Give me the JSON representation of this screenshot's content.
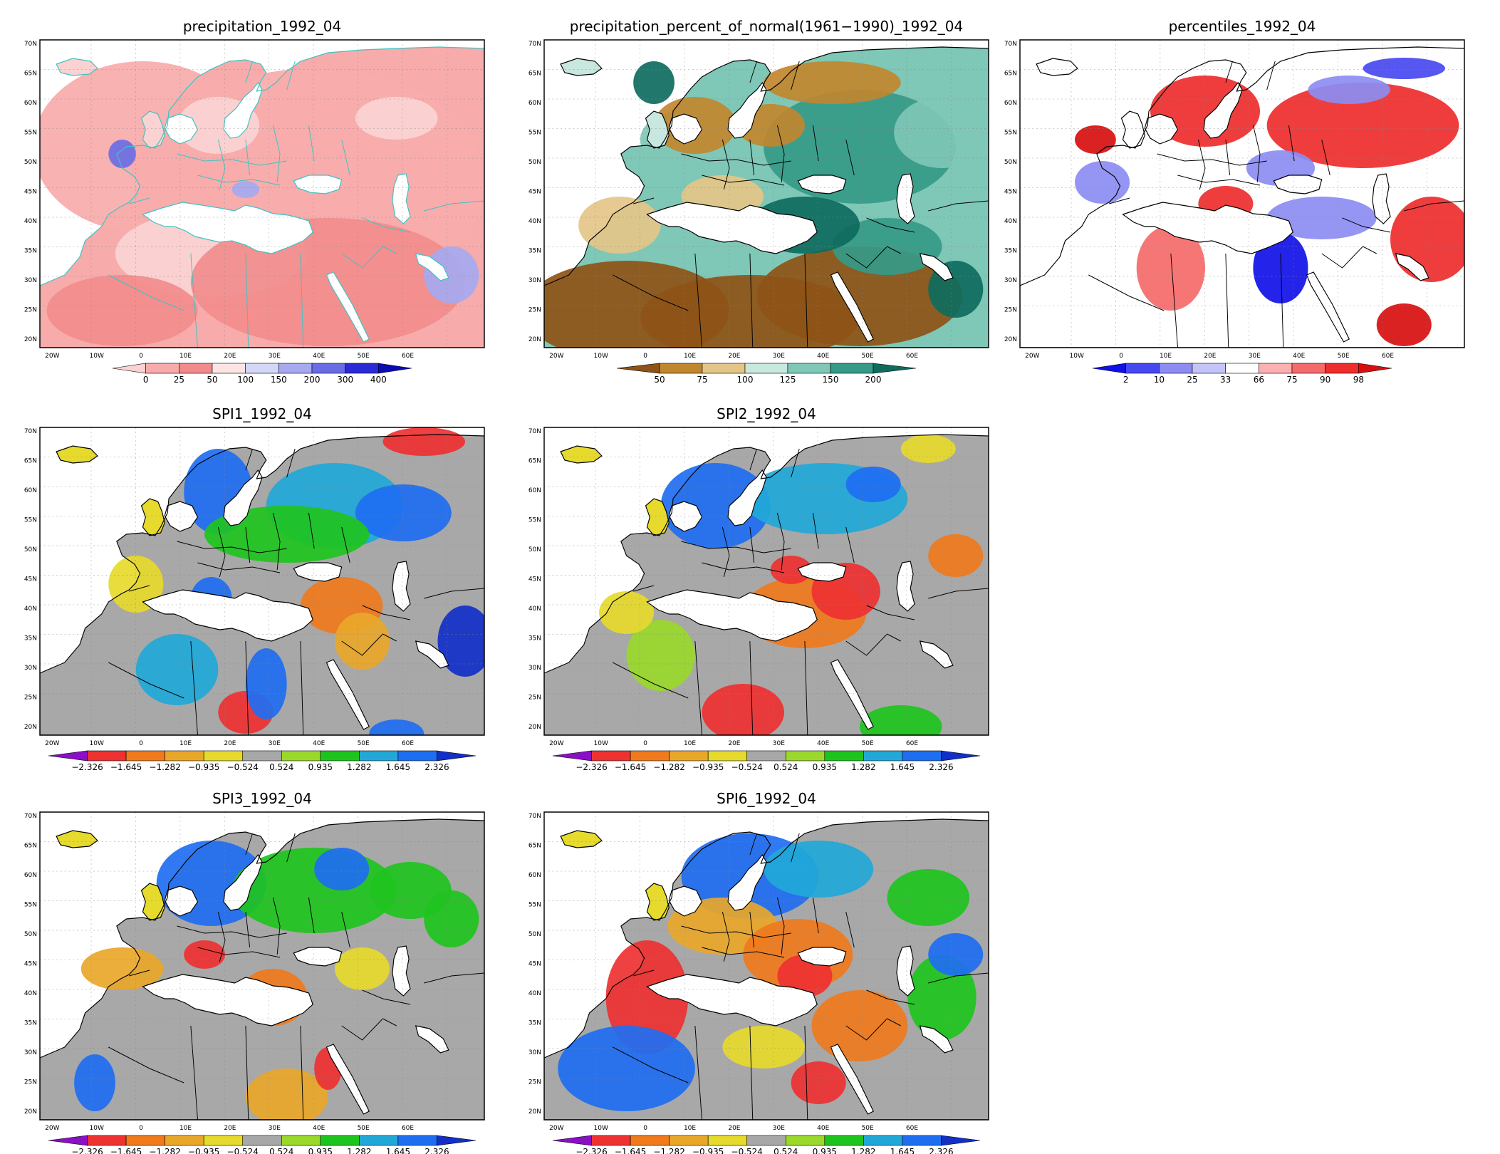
{
  "lat_labels": [
    "70N",
    "65N",
    "60N",
    "55N",
    "50N",
    "45N",
    "40N",
    "35N",
    "30N",
    "25N",
    "20N"
  ],
  "lon_labels": [
    "20W",
    "10W",
    "0",
    "10E",
    "20E",
    "30E",
    "40E",
    "50E",
    "60E"
  ],
  "colorbars": {
    "precip": {
      "labels": [
        "0",
        "25",
        "50",
        "100",
        "150",
        "200",
        "300",
        "400"
      ],
      "colors": [
        "#fbd2d2",
        "#f7abab",
        "#f28c8c",
        "#fce4e4",
        "#d4d7f7",
        "#a6a9f0",
        "#6a6ce6",
        "#2a2ad6",
        "#0b0bb4"
      ]
    },
    "percent": {
      "labels": [
        "50",
        "75",
        "100",
        "125",
        "150",
        "200"
      ],
      "colors": [
        "#8e5316",
        "#c1872f",
        "#e4c588",
        "#c7e7df",
        "#7fc7b6",
        "#359a88",
        "#0e6b5e"
      ]
    },
    "percentile": {
      "labels": [
        "2",
        "10",
        "25",
        "33",
        "66",
        "75",
        "90",
        "98"
      ],
      "colors": [
        "#1010e8",
        "#4848f0",
        "#8c8cf2",
        "#c4c4f8",
        "#ffffff",
        "#fbb1b1",
        "#f56a6a",
        "#ee2d2d",
        "#d80f0f"
      ]
    },
    "spi": {
      "labels": [
        "−2.326",
        "−1.645",
        "−1.282",
        "−0.935",
        "−0.524",
        "0.524",
        "0.935",
        "1.282",
        "1.645",
        "2.326"
      ],
      "colors": [
        "#8a0fc6",
        "#ee3131",
        "#f07a1c",
        "#e9a72a",
        "#e6da2c",
        "#a8a8a8",
        "#9ad82b",
        "#1ec41e",
        "#21a8d8",
        "#1e6ef2",
        "#1230c8"
      ]
    }
  },
  "panels": [
    {
      "id": "precip",
      "title": "precipitation_1992_04",
      "colorbar": "precip"
    },
    {
      "id": "percent",
      "title": "precipitation_percent_of_normal(1961−1990)_1992_04",
      "colorbar": "percent"
    },
    {
      "id": "percentile",
      "title": "percentiles_1992_04",
      "colorbar": "percentile"
    },
    {
      "id": "spi1",
      "title": "SPI1_1992_04",
      "colorbar": "spi"
    },
    {
      "id": "spi2",
      "title": "SPI2_1992_04",
      "colorbar": "spi"
    },
    {
      "id": "spi3",
      "title": "SPI3_1992_04",
      "colorbar": "spi"
    },
    {
      "id": "spi6",
      "title": "SPI6_1992_04",
      "colorbar": "spi"
    }
  ]
}
